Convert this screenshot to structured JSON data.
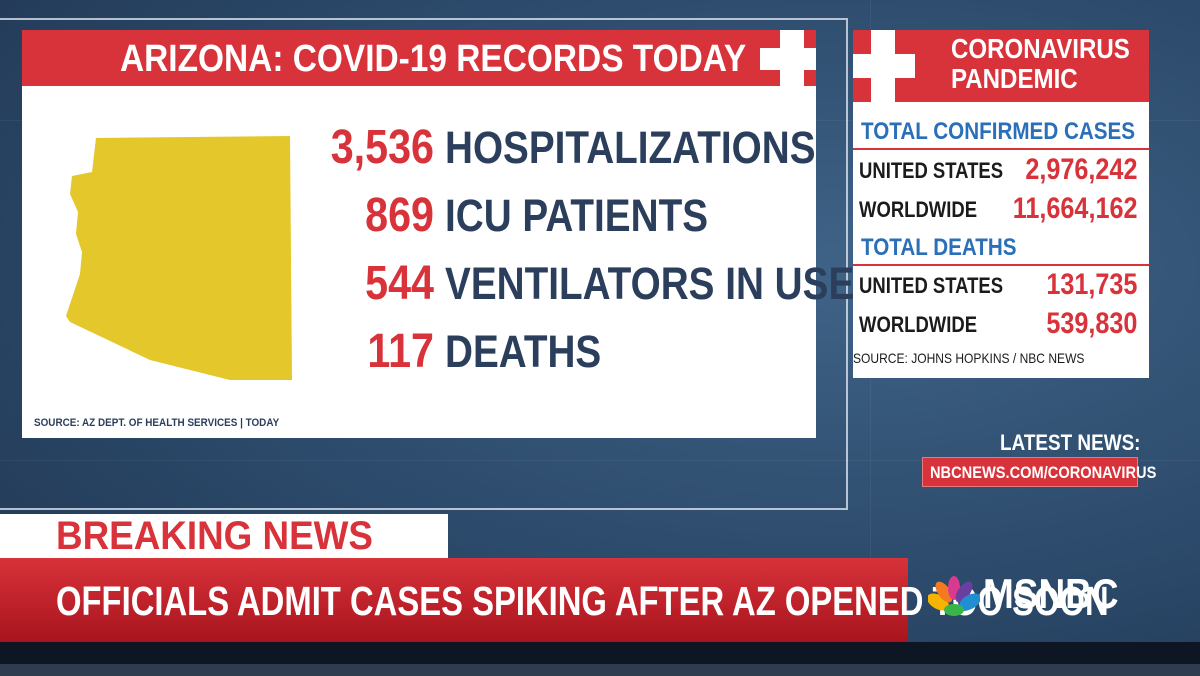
{
  "card": {
    "title": "ARIZONA: COVID-19 RECORDS TODAY",
    "stats": [
      {
        "value": "3,536",
        "label": "HOSPITALIZATIONS"
      },
      {
        "value": "869",
        "label": "ICU PATIENTS"
      },
      {
        "value": "544",
        "label": "VENTILATORS IN USE"
      },
      {
        "value": "117",
        "label": "DEATHS"
      }
    ],
    "source": "SOURCE: AZ DEPT. OF HEALTH SERVICES | TODAY",
    "map_color": "#e4c72a"
  },
  "panel": {
    "title_line1": "CORONAVIRUS",
    "title_line2": "PANDEMIC",
    "cases_header": "TOTAL CONFIRMED CASES",
    "cases": [
      {
        "label": "UNITED STATES",
        "value": "2,976,242"
      },
      {
        "label": "WORLDWIDE",
        "value": "11,664,162"
      }
    ],
    "deaths_header": "TOTAL DEATHS",
    "deaths": [
      {
        "label": "UNITED STATES",
        "value": "131,735"
      },
      {
        "label": "WORLDWIDE",
        "value": "539,830"
      }
    ],
    "source": "SOURCE: JOHNS HOPKINS / NBC NEWS"
  },
  "latest": {
    "label": "LATEST NEWS:",
    "url": "NBCNEWS.COM/CORONAVIRUS"
  },
  "lower_third": {
    "tag": "BREAKING NEWS",
    "headline": "OFFICIALS ADMIT CASES SPIKING AFTER AZ OPENED TOO SOON"
  },
  "logo": {
    "text": "MSNBC"
  },
  "colors": {
    "accent_red": "#d8323a",
    "navy": "#2b3f5c",
    "blue": "#2a6fb8"
  }
}
